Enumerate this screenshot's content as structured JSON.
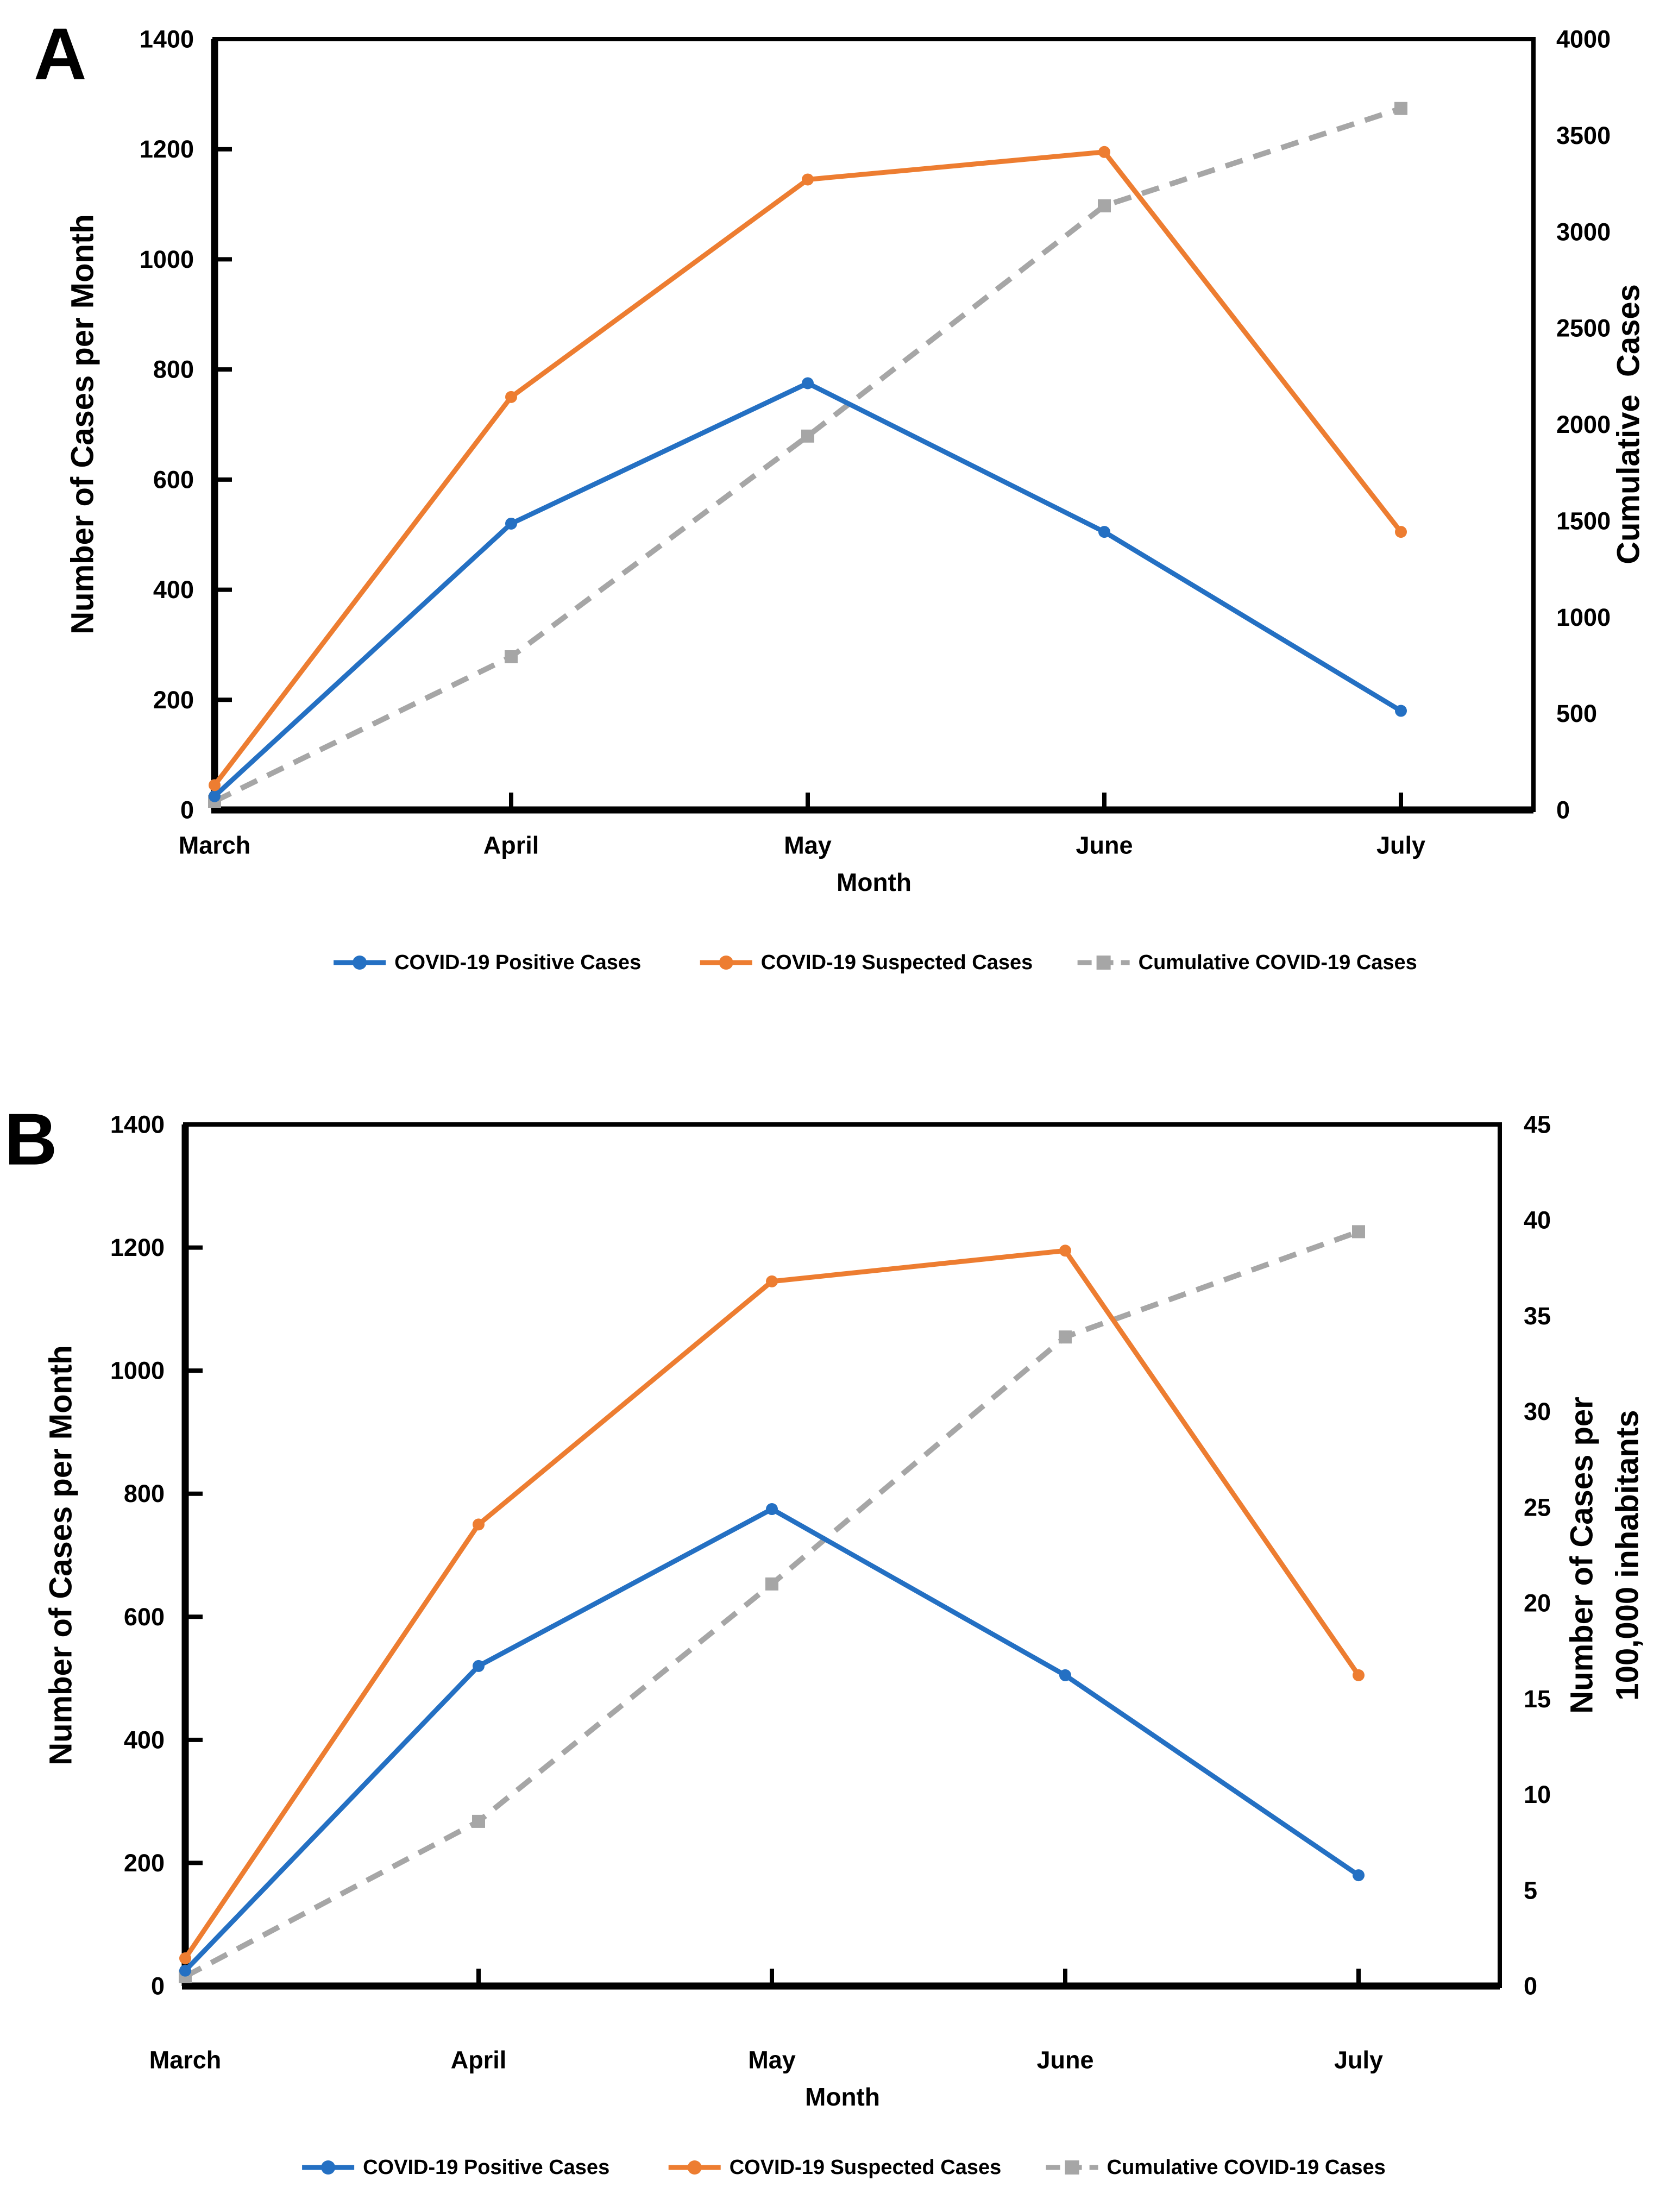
{
  "figure": {
    "background": "#ffffff",
    "panels": [
      {
        "panel_label": "A"
      },
      {
        "panel_label": "B"
      }
    ]
  },
  "chart_data": [
    {
      "type": "line",
      "panel_label": "A",
      "categories": [
        "March",
        "April",
        "May",
        "June",
        "July"
      ],
      "xlabel": "Month",
      "ylabel_left": "Number of Cases per Month",
      "ylabel_right_lines": [
        "Cumulative  Cases"
      ],
      "y_left": {
        "min": 0,
        "max": 1400,
        "step": 200
      },
      "y_right": {
        "min": 0,
        "max": 4000,
        "step": 500
      },
      "grid": "off",
      "legend_position": "bottom",
      "series": [
        {
          "name": "COVID-19 Positive Cases",
          "axis": "left",
          "color": "#2470C3",
          "style": "solid",
          "marker": "circle",
          "values": [
            25,
            520,
            775,
            505,
            180
          ]
        },
        {
          "name": "COVID-19 Suspected Cases",
          "axis": "left",
          "color": "#ED7D31",
          "style": "solid",
          "marker": "circle",
          "values": [
            45,
            750,
            1145,
            1195,
            505
          ]
        },
        {
          "name": "Cumulative COVID-19 Cases",
          "axis": "right",
          "color": "#A6A6A6",
          "style": "dashed",
          "marker": "square",
          "values": [
            45,
            795,
            1940,
            3135,
            3640
          ]
        }
      ]
    },
    {
      "type": "line",
      "panel_label": "B",
      "categories": [
        "March",
        "April",
        "May",
        "June",
        "July"
      ],
      "xlabel": "Month",
      "ylabel_left": "Number of Cases per Month",
      "ylabel_right_lines": [
        "Number of Cases per",
        "100,000 inhabitants"
      ],
      "y_left": {
        "min": 0,
        "max": 1400,
        "step": 200
      },
      "y_right": {
        "min": 0,
        "max": 45,
        "step": 5
      },
      "grid": "off",
      "legend_position": "bottom",
      "series": [
        {
          "name": "COVID-19 Positive Cases",
          "axis": "left",
          "color": "#2470C3",
          "style": "solid",
          "marker": "circle",
          "values": [
            25,
            520,
            775,
            505,
            180
          ]
        },
        {
          "name": "COVID-19 Suspected Cases",
          "axis": "left",
          "color": "#ED7D31",
          "style": "solid",
          "marker": "circle",
          "values": [
            45,
            750,
            1145,
            1195,
            505
          ]
        },
        {
          "name": "Cumulative COVID-19 Cases",
          "axis": "right",
          "color": "#A6A6A6",
          "style": "dashed",
          "marker": "square",
          "values": [
            0.5,
            8.6,
            21.0,
            33.9,
            39.4
          ]
        }
      ]
    }
  ]
}
